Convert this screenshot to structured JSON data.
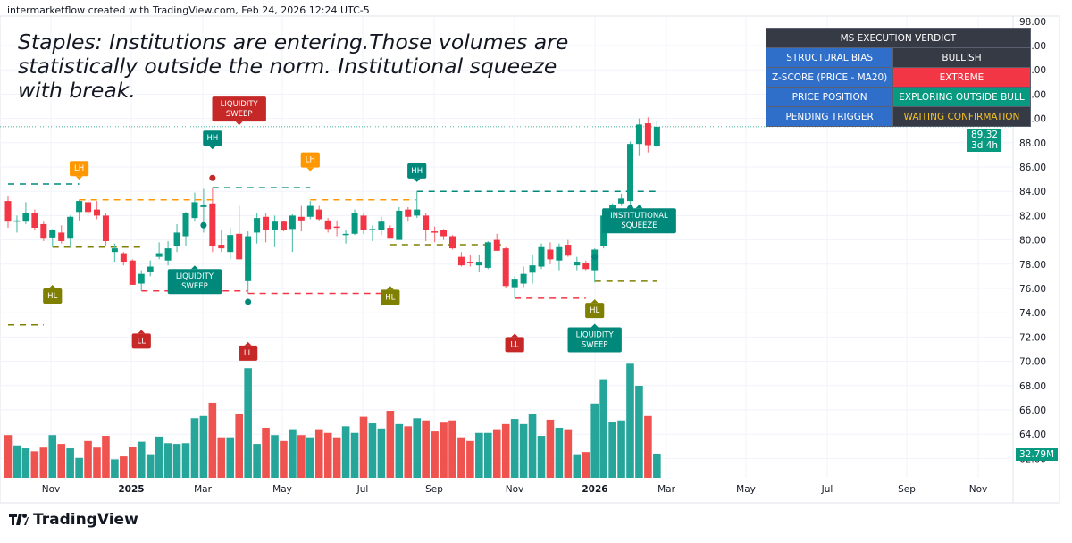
{
  "header": "intermarketflow created with TradingView.com, Feb 24, 2026 12:24 UTC-5",
  "title": "Staples: Institutions are entering.Those volumes are statistically outside the norm. Institutional squeeze with break.",
  "verdict": {
    "heading": "MS EXECUTION VERDICT",
    "rows": [
      {
        "key": "STRUCTURAL BIAS",
        "value": "BULLISH",
        "bg": "#363a45",
        "fg": "#ffffff"
      },
      {
        "key": "Z-SCORE (PRICE - MA20)",
        "value": "EXTREME",
        "bg": "#f23645",
        "fg": "#ffffff"
      },
      {
        "key": "PRICE POSITION",
        "value": "EXPLORING OUTSIDE BULL",
        "bg": "#089981",
        "fg": "#ffffff"
      },
      {
        "key": "PENDING TRIGGER",
        "value": "WAITING CONFIRMATION",
        "bg": "#363a45",
        "fg": "#f7c325"
      }
    ]
  },
  "price_tag": {
    "price": "89.32",
    "countdown": "3d 4h"
  },
  "volume_tag": "32.79M",
  "logo": "TradingView",
  "colors": {
    "up": "#089981",
    "down": "#f23645",
    "up_vol": "#26a69a",
    "down_vol": "#ef5350",
    "orange": "#ff9800",
    "olive": "#808000",
    "red_label": "#c62828",
    "teal_label": "#00897b"
  },
  "chart_data": {
    "type": "candlestick",
    "interval": "weekly",
    "y_ticks": [
      "98.00",
      "96.00",
      "94.00",
      "92.00",
      "90.00",
      "88.00",
      "86.00",
      "84.00",
      "82.00",
      "80.00",
      "78.00",
      "76.00",
      "74.00",
      "72.00",
      "70.00",
      "68.00",
      "66.00",
      "64.00",
      "62.00"
    ],
    "x_ticks": [
      "Nov",
      "2025",
      "Mar",
      "May",
      "Jul",
      "Sep",
      "Nov",
      "2026",
      "Mar",
      "May",
      "Jul",
      "Sep",
      "Nov"
    ],
    "ohlc": [
      [
        83.2,
        83.6,
        81.0,
        81.5
      ],
      [
        81.5,
        82.0,
        80.6,
        81.6
      ],
      [
        81.5,
        83.1,
        81.3,
        82.2
      ],
      [
        82.2,
        82.5,
        80.8,
        81.0
      ],
      [
        81.3,
        81.5,
        79.9,
        80.1
      ],
      [
        80.2,
        80.9,
        79.4,
        80.8
      ],
      [
        80.6,
        81.2,
        79.7,
        79.9
      ],
      [
        80.1,
        82.0,
        79.4,
        81.9
      ],
      [
        82.3,
        83.3,
        81.6,
        83.2
      ],
      [
        83.1,
        83.3,
        82.0,
        82.3
      ],
      [
        82.5,
        83.2,
        81.7,
        82.0
      ],
      [
        82.0,
        82.2,
        79.5,
        79.9
      ],
      [
        79.0,
        79.7,
        78.2,
        79.3
      ],
      [
        78.9,
        79.0,
        77.9,
        78.2
      ],
      [
        78.3,
        78.4,
        76.3,
        76.3
      ],
      [
        76.4,
        77.5,
        75.8,
        77.2
      ],
      [
        77.4,
        78.3,
        77.0,
        77.8
      ],
      [
        78.6,
        79.8,
        78.4,
        78.9
      ],
      [
        78.3,
        79.9,
        77.9,
        79.3
      ],
      [
        79.5,
        81.3,
        79.0,
        80.6
      ],
      [
        80.3,
        82.3,
        79.5,
        82.2
      ],
      [
        81.8,
        83.9,
        81.5,
        83.1
      ],
      [
        82.7,
        84.2,
        80.6,
        82.9
      ],
      [
        83.0,
        84.3,
        79.0,
        79.5
      ],
      [
        79.6,
        80.8,
        79.0,
        79.3
      ],
      [
        79.0,
        81.0,
        78.4,
        80.4
      ],
      [
        80.5,
        82.8,
        78.4,
        78.4
      ],
      [
        76.6,
        80.7,
        75.6,
        80.3
      ],
      [
        80.6,
        82.2,
        79.7,
        81.8
      ],
      [
        81.9,
        82.2,
        79.8,
        80.8
      ],
      [
        80.8,
        82.0,
        79.4,
        81.5
      ],
      [
        81.5,
        81.6,
        80.7,
        80.8
      ],
      [
        80.9,
        82.1,
        79.0,
        82.0
      ],
      [
        81.9,
        82.8,
        80.7,
        81.6
      ],
      [
        81.9,
        83.2,
        81.7,
        82.8
      ],
      [
        82.5,
        82.8,
        81.6,
        81.7
      ],
      [
        81.6,
        81.8,
        80.6,
        80.9
      ],
      [
        81.1,
        81.6,
        80.3,
        81.0
      ],
      [
        80.4,
        80.8,
        79.7,
        80.5
      ],
      [
        80.5,
        82.5,
        80.4,
        82.2
      ],
      [
        82.0,
        82.2,
        80.5,
        80.8
      ],
      [
        80.8,
        81.2,
        79.9,
        80.9
      ],
      [
        80.8,
        81.9,
        80.4,
        81.5
      ],
      [
        81.0,
        81.2,
        80.1,
        80.1
      ],
      [
        80.0,
        82.7,
        80.0,
        82.4
      ],
      [
        82.5,
        82.7,
        81.5,
        81.9
      ],
      [
        82.0,
        84.0,
        81.8,
        82.5
      ],
      [
        82.0,
        82.2,
        79.9,
        80.8
      ],
      [
        80.7,
        81.1,
        79.8,
        80.6
      ],
      [
        80.8,
        80.9,
        80.0,
        80.3
      ],
      [
        80.3,
        80.4,
        79.2,
        79.3
      ],
      [
        78.6,
        79.0,
        77.8,
        77.9
      ],
      [
        78.2,
        78.8,
        77.8,
        78.1
      ],
      [
        77.9,
        78.8,
        77.4,
        78.2
      ],
      [
        77.7,
        79.9,
        77.6,
        79.8
      ],
      [
        80.0,
        80.5,
        79.1,
        79.1
      ],
      [
        79.3,
        79.4,
        76.0,
        76.2
      ],
      [
        76.1,
        77.0,
        75.2,
        76.8
      ],
      [
        76.4,
        77.8,
        76.1,
        77.2
      ],
      [
        77.3,
        78.8,
        76.4,
        77.9
      ],
      [
        77.8,
        79.7,
        77.6,
        79.4
      ],
      [
        79.2,
        79.8,
        78.0,
        78.4
      ],
      [
        78.3,
        79.7,
        77.5,
        79.4
      ],
      [
        79.6,
        80.0,
        78.6,
        78.7
      ],
      [
        77.9,
        78.6,
        77.5,
        78.2
      ],
      [
        78.1,
        78.3,
        77.5,
        77.6
      ],
      [
        77.5,
        79.3,
        76.5,
        79.2
      ],
      [
        79.5,
        82.6,
        79.3,
        82.0
      ],
      [
        81.7,
        83.0,
        81.5,
        82.9
      ],
      [
        83.0,
        83.8,
        82.8,
        83.4
      ],
      [
        83.2,
        88.1,
        82.9,
        87.9
      ],
      [
        87.9,
        90.0,
        86.9,
        89.5
      ],
      [
        89.6,
        90.1,
        87.2,
        87.8
      ],
      [
        87.7,
        89.8,
        87.6,
        89.32
      ]
    ],
    "volume_m": [
      58,
      44,
      40,
      36,
      41,
      58,
      46,
      40,
      27,
      50,
      41,
      57,
      25,
      29,
      42,
      49,
      32,
      56,
      47,
      46,
      47,
      81,
      84,
      102,
      55,
      55,
      87,
      149,
      46,
      68,
      58,
      50,
      66,
      58,
      55,
      66,
      61,
      55,
      70,
      61,
      83,
      74,
      67,
      91,
      73,
      70,
      81,
      78,
      63,
      75,
      78,
      55,
      50,
      61,
      61,
      66,
      73,
      80,
      73,
      87,
      57,
      79,
      68,
      66,
      32,
      35,
      101,
      134,
      76,
      78,
      155,
      125,
      84,
      32.79
    ],
    "labels": [
      {
        "text": "LH",
        "color": "#ff9800",
        "bar": 8,
        "price": 86.5,
        "dir": "down"
      },
      {
        "text": "HL",
        "color": "#808000",
        "bar": 5,
        "price": 76.0,
        "dir": "up"
      },
      {
        "text": "LL",
        "color": "#c62828",
        "bar": 15,
        "price": 72.3,
        "dir": "up"
      },
      {
        "text": "HH",
        "color": "#00897b",
        "bar": 23,
        "price": 89.0,
        "dir": "down"
      },
      {
        "text": "LIQUIDITY SWEEP",
        "color": "#c62828",
        "bar": 26,
        "price": 88.2,
        "dir": "down"
      },
      {
        "text": "LIQUIDITY SWEEP",
        "color": "#00897b",
        "bar": 21,
        "price": 77.6,
        "dir": "up"
      },
      {
        "text": "LL",
        "color": "#c62828",
        "bar": 27,
        "price": 71.3,
        "dir": "up"
      },
      {
        "text": "LH",
        "color": "#ff9800",
        "bar": 34,
        "price": 87.2,
        "dir": "down"
      },
      {
        "text": "HH",
        "color": "#00897b",
        "bar": 46,
        "price": 86.3,
        "dir": "down"
      },
      {
        "text": "HL",
        "color": "#808000",
        "bar": 43,
        "price": 75.9,
        "dir": "up"
      },
      {
        "text": "LL",
        "color": "#c62828",
        "bar": 57,
        "price": 72.0,
        "dir": "up"
      },
      {
        "text": "INSTITUTIONAL SQUEEZE",
        "color": "#00897b",
        "bar": 71,
        "price": 82.6,
        "dir": "up"
      },
      {
        "text": "LIQUIDITY SWEEP",
        "color": "#00897b",
        "bar": 66,
        "price": 72.8,
        "dir": "up"
      },
      {
        "text": "HL",
        "color": "#808000",
        "bar": 66,
        "price": 73.2,
        "dir": "up"
      }
    ],
    "levels": [
      {
        "color": "#00897b",
        "price": 84.6,
        "from": 0,
        "to": 8
      },
      {
        "color": "#808000",
        "price": 73.0,
        "from": 0,
        "to": 4
      },
      {
        "color": "#ff9800",
        "price": 83.3,
        "from": 8,
        "to": 23
      },
      {
        "color": "#00897b",
        "price": 84.3,
        "from": 23,
        "to": 34
      },
      {
        "color": "#808000",
        "price": 79.4,
        "from": 5,
        "to": 15
      },
      {
        "color": "#f23645",
        "price": 75.8,
        "from": 15,
        "to": 27
      },
      {
        "color": "#f23645",
        "price": 75.6,
        "from": 27,
        "to": 42
      },
      {
        "color": "#ff9800",
        "price": 83.3,
        "from": 34,
        "to": 46
      },
      {
        "color": "#00897b",
        "price": 84.0,
        "from": 46,
        "to": 73
      },
      {
        "color": "#808000",
        "price": 79.6,
        "from": 43,
        "to": 56
      },
      {
        "color": "#f23645",
        "price": 75.2,
        "from": 57,
        "to": 65
      },
      {
        "color": "#808000",
        "price": 76.6,
        "from": 66,
        "to": 73
      }
    ],
    "dots": [
      {
        "color": "#c62828",
        "bar": 23,
        "price": 85.1
      },
      {
        "color": "#00897b",
        "bar": 22,
        "price": 81.2
      },
      {
        "color": "#00897b",
        "bar": 27,
        "price": 74.9
      },
      {
        "color": "#00897b",
        "bar": 66,
        "price": 78.6
      },
      {
        "color": "#00897b",
        "bar": 70,
        "price": 82.6
      }
    ]
  }
}
